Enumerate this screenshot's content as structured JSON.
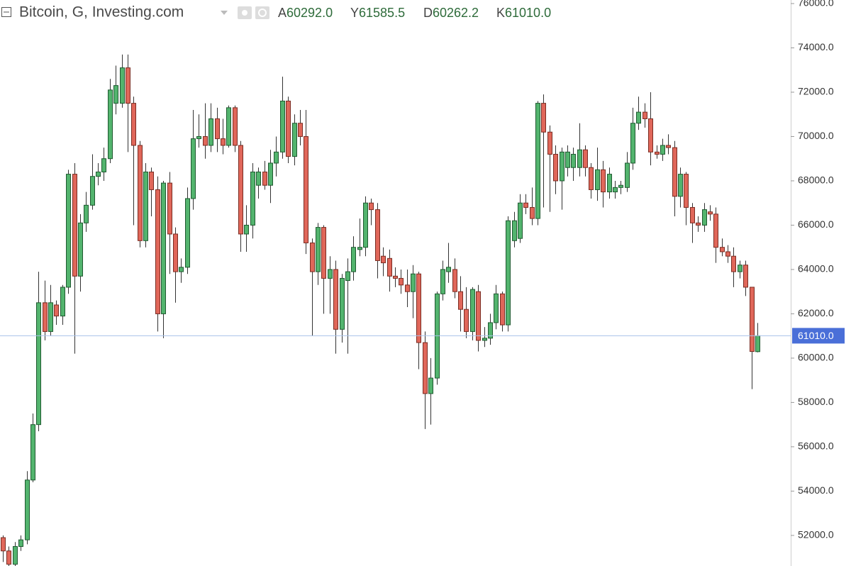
{
  "chart_data": {
    "type": "candlestick",
    "title": "Bitcoin, G, Investing.com",
    "ohlc_legend": [
      {
        "key": "A",
        "value": "60292.0"
      },
      {
        "key": "Y",
        "value": "61585.5"
      },
      {
        "key": "D",
        "value": "60262.2"
      },
      {
        "key": "K",
        "value": "61010.0"
      }
    ],
    "open": [
      51900,
      51300,
      50700,
      51500,
      51800,
      54500,
      57000,
      62500,
      61200,
      62400,
      61900,
      63200,
      68300,
      63700,
      66100,
      66900,
      68200,
      68400,
      69000,
      71500,
      71500,
      73100,
      71500,
      69600,
      65300,
      68400,
      67600,
      62000,
      67900,
      65600,
      63900,
      64100,
      67200,
      69900,
      70000,
      69600,
      70800,
      69900,
      69600,
      71300,
      69600,
      65600,
      66000,
      67800,
      68400,
      67800,
      68800,
      69300,
      71600,
      69100,
      70600,
      70000,
      65200,
      63900,
      65900,
      63600,
      64000,
      61300,
      63500,
      63900,
      64900,
      65000,
      67000,
      66700,
      64600,
      64500,
      63700,
      63600,
      63300,
      63000,
      63800,
      60700,
      58400,
      59100,
      62900,
      63900,
      64000,
      63000,
      62200,
      61200,
      63000,
      60800,
      60900,
      61600,
      62900,
      61500,
      65300,
      65400,
      67000,
      66800,
      66300,
      71500,
      70200,
      69200,
      68000,
      68600,
      68600,
      68600,
      69400,
      68600,
      67600,
      68500,
      67500,
      67500,
      67700,
      67700,
      68800,
      70600,
      71100,
      70800,
      69300,
      69200,
      69600,
      69500,
      67300,
      68300,
      66800,
      66100,
      66000,
      66600,
      66500,
      65000,
      64800,
      64600,
      63900,
      64200,
      63200,
      60292
    ],
    "high": [
      52000,
      51500,
      51700,
      52000,
      54900,
      57500,
      63900,
      63500,
      63300,
      62600,
      63300,
      68500,
      68800,
      66500,
      67500,
      69200,
      68800,
      69500,
      72600,
      73200,
      73700,
      73700,
      71800,
      69800,
      68800,
      68600,
      68200,
      68000,
      68400,
      65900,
      64500,
      67700,
      71200,
      71000,
      71500,
      71500,
      71300,
      70800,
      71400,
      71400,
      69800,
      66900,
      68800,
      68600,
      68900,
      69400,
      70000,
      72700,
      71800,
      71000,
      71200,
      71200,
      65400,
      66100,
      66000,
      64600,
      64400,
      63800,
      64500,
      65500,
      66300,
      67300,
      67200,
      67000,
      65000,
      64900,
      64100,
      64000,
      64000,
      64200,
      63900,
      61200,
      60000,
      63000,
      64400,
      65200,
      64500,
      63700,
      63200,
      63200,
      63300,
      61400,
      62000,
      63300,
      63000,
      66400,
      66600,
      67400,
      67400,
      67700,
      71600,
      71900,
      70500,
      69600,
      69500,
      69600,
      69500,
      70600,
      69600,
      68800,
      69500,
      68900,
      68600,
      68000,
      68000,
      69300,
      71300,
      71800,
      71500,
      72000,
      69600,
      69900,
      70100,
      69800,
      68600,
      68400,
      67000,
      66400,
      67000,
      66900,
      66800,
      65400,
      65100,
      65000,
      64400,
      64400,
      63200,
      61585.5
    ],
    "low": [
      50800,
      50600,
      50600,
      51300,
      51600,
      54400,
      56700,
      60800,
      61000,
      61500,
      61500,
      62900,
      60200,
      63000,
      65700,
      66700,
      67800,
      68000,
      68800,
      71000,
      71300,
      69300,
      66000,
      65000,
      65000,
      66400,
      61200,
      60900,
      63800,
      62500,
      63400,
      63800,
      66700,
      69500,
      69000,
      69300,
      69300,
      69200,
      69500,
      69300,
      64800,
      64800,
      65400,
      67200,
      67600,
      67000,
      68200,
      69000,
      68800,
      68700,
      69600,
      64700,
      61000,
      63300,
      62000,
      62000,
      60200,
      60700,
      60200,
      63500,
      64600,
      64600,
      66000,
      63600,
      63700,
      63000,
      63200,
      62900,
      62300,
      61800,
      59500,
      56800,
      57000,
      58800,
      62600,
      63400,
      62700,
      61200,
      60900,
      60800,
      60300,
      60500,
      60600,
      61300,
      61200,
      61200,
      65000,
      65200,
      66500,
      66000,
      66000,
      66800,
      66600,
      67400,
      66700,
      68200,
      68000,
      68200,
      68200,
      67200,
      67100,
      66800,
      67200,
      67200,
      67400,
      67500,
      68500,
      70300,
      70400,
      68700,
      69000,
      68900,
      69200,
      66400,
      66800,
      66000,
      65200,
      65700,
      65700,
      66200,
      64300,
      64600,
      64300,
      63200,
      63600,
      62800,
      58600,
      60262.2
    ],
    "close": [
      51300,
      50700,
      51500,
      51800,
      54500,
      57000,
      62500,
      61200,
      62500,
      61900,
      63200,
      68300,
      63700,
      66100,
      66900,
      68200,
      68400,
      69000,
      72100,
      72300,
      73100,
      71500,
      69600,
      65300,
      68400,
      67600,
      62000,
      67900,
      65600,
      63900,
      64100,
      67200,
      69900,
      70000,
      69600,
      70800,
      69900,
      69600,
      71300,
      69600,
      65600,
      66000,
      68400,
      68400,
      67800,
      68800,
      69300,
      71600,
      69100,
      70600,
      70000,
      65200,
      63900,
      65900,
      63600,
      64000,
      61300,
      63600,
      63900,
      65000,
      65000,
      67000,
      66700,
      64400,
      64300,
      63700,
      63600,
      63300,
      63000,
      63800,
      60700,
      58400,
      59100,
      62900,
      64000,
      64100,
      63000,
      62200,
      61200,
      63100,
      60800,
      60900,
      61600,
      62900,
      61500,
      66200,
      66200,
      67000,
      66800,
      66300,
      71500,
      70200,
      69200,
      68000,
      69300,
      69300,
      69200,
      69400,
      68600,
      67600,
      68500,
      67500,
      68300,
      67700,
      67800,
      68800,
      70600,
      71100,
      70800,
      69300,
      69200,
      69600,
      69500,
      67300,
      68300,
      66800,
      66100,
      66000,
      66700,
      66500,
      65000,
      64800,
      64600,
      63900,
      64200,
      63200,
      60300,
      61010
    ],
    "up_color": "#53b46e",
    "down_color": "#e0675a",
    "ylim": [
      50620,
      76160
    ],
    "yticks": [
      {
        "value": 52000,
        "label": "52000.0"
      },
      {
        "value": 54000,
        "label": "54000.0"
      },
      {
        "value": 56000,
        "label": "56000.0"
      },
      {
        "value": 58000,
        "label": "58000.0"
      },
      {
        "value": 60000,
        "label": "60000.0"
      },
      {
        "value": 62000,
        "label": "62000.0"
      },
      {
        "value": 64000,
        "label": "64000.0"
      },
      {
        "value": 66000,
        "label": "66000.0"
      },
      {
        "value": 68000,
        "label": "68000.0"
      },
      {
        "value": 70000,
        "label": "70000.0"
      },
      {
        "value": 72000,
        "label": "72000.0"
      },
      {
        "value": 74000,
        "label": "74000.0"
      },
      {
        "value": 76000,
        "label": "76000.0"
      }
    ],
    "last_price": {
      "value": 61010,
      "label": "61010.0"
    },
    "grid": false
  }
}
